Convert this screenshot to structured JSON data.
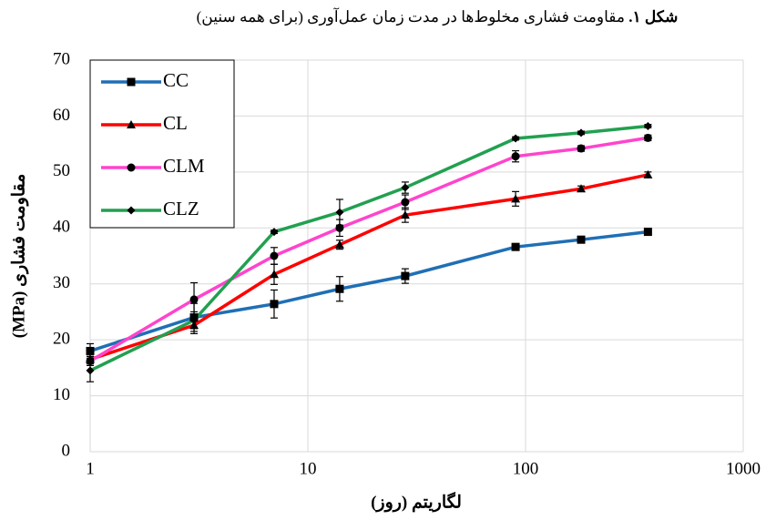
{
  "chart_data": {
    "type": "line",
    "title_label": "شکل ۱.",
    "title": "مقاومت فشاری مخلوط‌ها در مدت زمان عمل‌آوری (برای همه سنین)",
    "xlabel": "لگاریتم (روز)",
    "ylabel": "مقاومت فشاری (MPa)",
    "x": [
      1,
      3,
      7,
      14,
      28,
      90,
      180,
      365
    ],
    "xscale": "log",
    "xlim": [
      1,
      1000
    ],
    "xticks": [
      1,
      10,
      100,
      1000
    ],
    "ylim": [
      0,
      70
    ],
    "yticks": [
      0,
      10,
      20,
      30,
      40,
      50,
      60,
      70
    ],
    "grid": true,
    "legend": "upper-left",
    "series": [
      {
        "name": "CC",
        "color": "#1f6fb5",
        "marker": "square",
        "values": [
          18,
          24,
          26.4,
          29.1,
          31.4,
          36.6,
          37.9,
          39.3
        ],
        "errors": [
          1.3,
          2.5,
          2.5,
          2.2,
          1.3,
          0.5,
          0.5,
          0.5
        ]
      },
      {
        "name": "CL",
        "color": "#ff0000",
        "marker": "triangle",
        "values": [
          16.5,
          22.6,
          31.7,
          37,
          42.3,
          45.2,
          47,
          49.5
        ],
        "errors": [
          0.8,
          1.5,
          1.8,
          0.8,
          1.3,
          1.3,
          0.5,
          0.5
        ]
      },
      {
        "name": "CLM",
        "color": "#ff44cc",
        "marker": "circle",
        "values": [
          16.2,
          27.2,
          35,
          40,
          44.6,
          52.8,
          54.2,
          56.1
        ],
        "errors": [
          0.8,
          3,
          1.5,
          1.5,
          1.3,
          1,
          0.5,
          0.5
        ]
      },
      {
        "name": "CLZ",
        "color": "#22a050",
        "marker": "diamond",
        "values": [
          14.5,
          23.5,
          39.3,
          42.8,
          47.2,
          56,
          57,
          58.2
        ],
        "errors": [
          2,
          1.5,
          0.3,
          2.3,
          1,
          0.3,
          0.3,
          0.3
        ]
      }
    ]
  }
}
